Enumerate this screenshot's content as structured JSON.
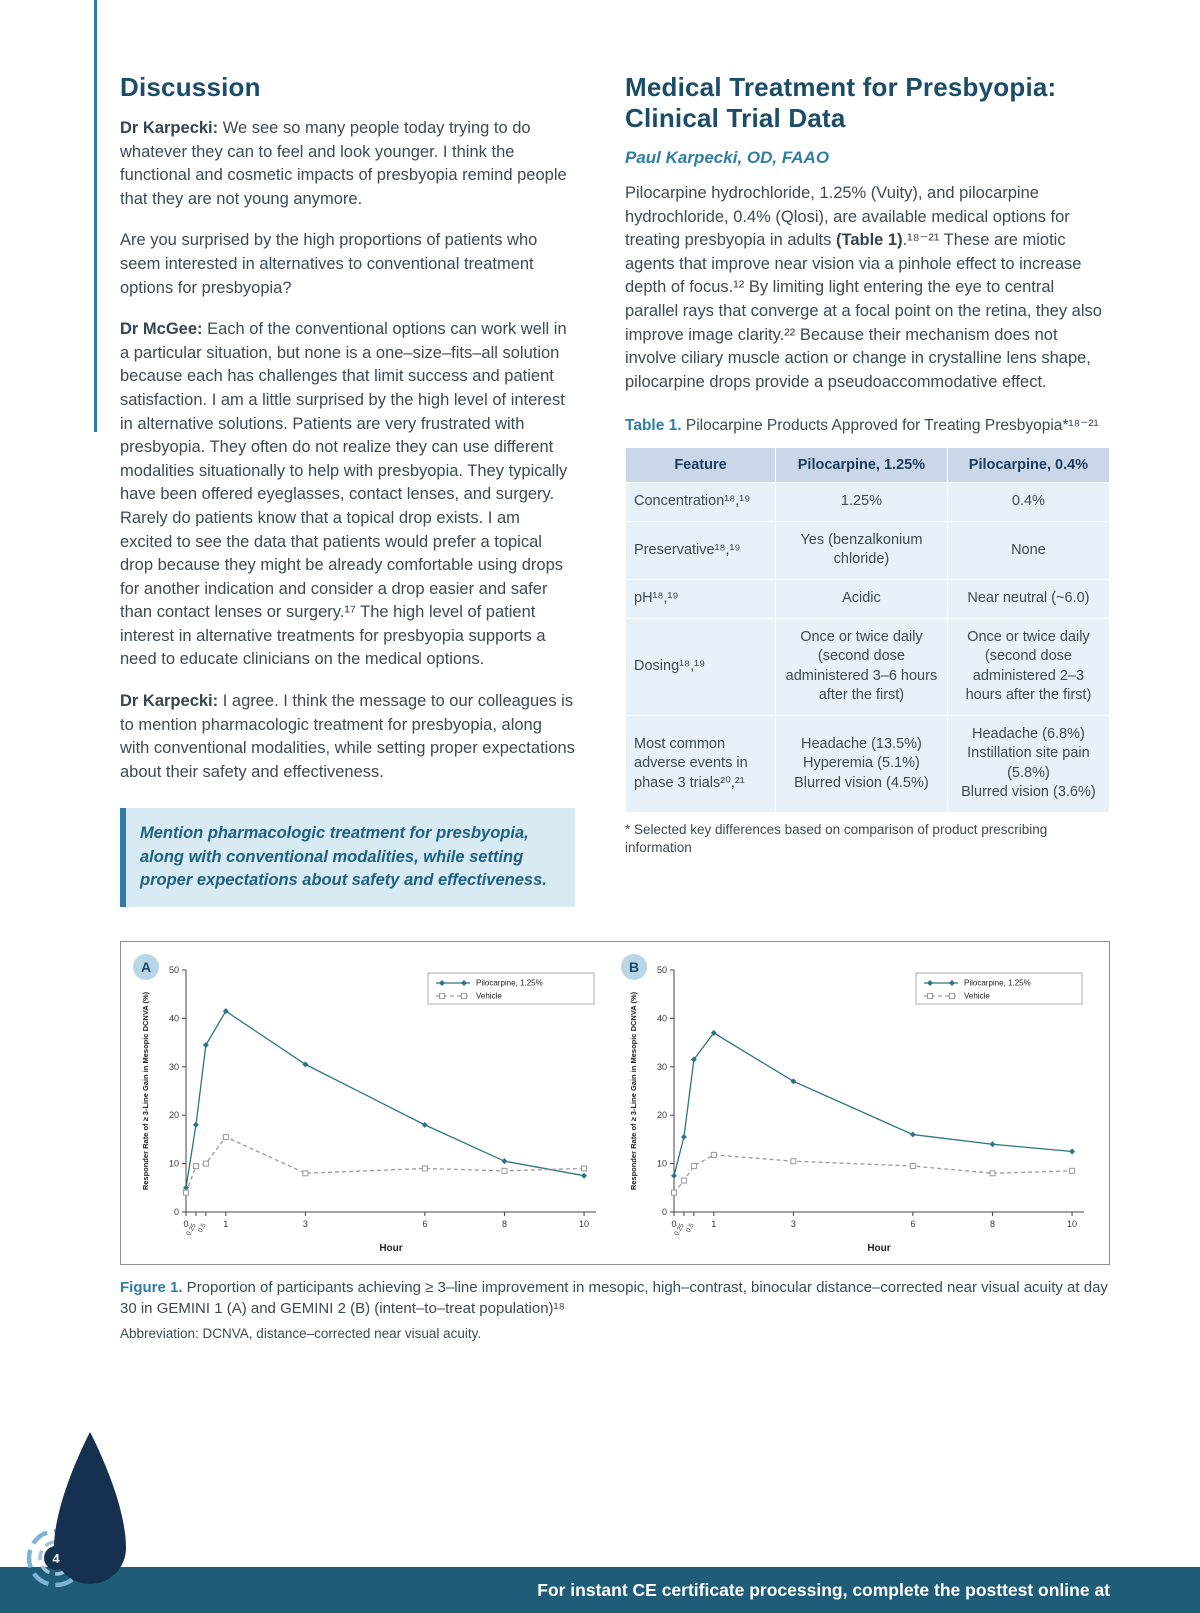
{
  "discussion": {
    "heading": "Discussion",
    "paragraphs": [
      {
        "segments": [
          {
            "text": "Dr Karpecki: ",
            "bold": true
          },
          {
            "text": "We see so many people today trying to do whatever they can to feel and look younger. I think the functional and cosmetic impacts of presbyopia remind people that they are not young anymore."
          }
        ]
      },
      {
        "segments": [
          {
            "text": "Are you surprised by the high proportions of patients who seem interested in alternatives to conventional treatment options for presbyopia?"
          }
        ]
      },
      {
        "segments": [
          {
            "text": "Dr McGee: ",
            "bold": true
          },
          {
            "text": "Each of the conventional options can work well in a particular situation, but none is a one–size–fits–all solution because each has challenges that limit success and patient satisfaction. I am a little surprised by the high level of interest in alternative solutions. Patients are very frustrated with presbyopia. They often do not realize they can use different modalities situationally to help with presbyopia. They typically have been offered eyeglasses, contact lenses, and surgery. Rarely do patients know that a topical drop exists. I am excited to see the data that patients would prefer a topical drop because they might be already comfortable using drops for another indication and consider a drop easier and safer than contact lenses or surgery.¹⁷ The high level of patient interest in alternative treatments for presbyopia supports a need to educate clinicians on the medical options."
          }
        ]
      },
      {
        "segments": [
          {
            "text": "Dr Karpecki: ",
            "bold": true
          },
          {
            "text": "I agree. I think the message to our colleagues is to mention pharmacologic treatment for presbyopia, along with conventional modalities, while setting proper expectations about their safety and effectiveness."
          }
        ]
      }
    ],
    "callout": "Mention pharmacologic treatment for presbyopia, along with conventional modalities, while setting proper expectations about safety and effectiveness."
  },
  "clinical": {
    "heading": "Medical Treatment for Presbyopia: Clinical Trial Data",
    "byline": "Paul Karpecki, OD, FAAO",
    "paragraphs": [
      {
        "segments": [
          {
            "text": "Pilocarpine hydrochloride, 1.25% (Vuity), and pilocarpine hydrochloride, 0.4% (Qlosi), are available medical options for treating presbyopia in adults "
          },
          {
            "text": "(Table 1)",
            "bold": true
          },
          {
            "text": ".¹⁸⁻²¹ These are miotic agents that improve near vision via a pinhole effect to increase depth of focus.¹² By limiting light entering the eye to central parallel rays that converge at a focal point on the retina, they also improve image clarity.²² Because their mechanism does not involve ciliary muscle action or change in crystalline lens shape, pilocarpine drops provide a pseudoaccommodative effect."
          }
        ]
      }
    ]
  },
  "table": {
    "label": "Table 1.",
    "title": " Pilocarpine Products Approved for Treating Presbyopia*¹⁸⁻²¹",
    "columns": [
      "Feature",
      "Pilocarpine, 1.25%",
      "Pilocarpine, 0.4%"
    ],
    "rows": [
      [
        "Concentration¹⁸,¹⁹",
        "1.25%",
        "0.4%"
      ],
      [
        "Preservative¹⁸,¹⁹",
        "Yes (benzalkonium chloride)",
        "None"
      ],
      [
        "pH¹⁸,¹⁹",
        "Acidic",
        "Near neutral (~6.0)"
      ],
      [
        "Dosing¹⁸,¹⁹",
        "Once or twice daily (second dose administered 3–6 hours after the first)",
        "Once or twice daily (second dose administered 2–3 hours after the first)"
      ],
      [
        "Most common adverse events in phase 3 trials²⁰,²¹",
        "Headache (13.5%)\nHyperemia (5.1%)\nBlurred vision (4.5%)",
        "Headache (6.8%)\nInstillation site pain (5.8%)\nBlurred vision (3.6%)"
      ]
    ],
    "footnote": "* Selected key differences based on comparison of product prescribing information"
  },
  "figure": {
    "panels": [
      {
        "label": "A"
      },
      {
        "label": "B"
      }
    ],
    "caption_label": "Figure 1.",
    "caption_text": " Proportion of participants achieving ≥ 3–line improvement in mesopic, high–contrast, binocular distance–corrected near visual acuity at day 30 in GEMINI 1 (A) and GEMINI 2 (B) (intent–to–treat population)¹⁸",
    "abbreviation": "Abbreviation: DCNVA, distance–corrected near visual acuity."
  },
  "chart_data": [
    {
      "type": "line",
      "panel": "A",
      "title": "GEMINI 1",
      "x": [
        0,
        0.25,
        0.5,
        1,
        3,
        6,
        8,
        10
      ],
      "xticks": [
        0,
        0.25,
        0.5,
        1,
        3,
        6,
        8,
        10
      ],
      "xlim": [
        0,
        10.3
      ],
      "ylim": [
        0,
        50
      ],
      "yticks": [
        0,
        10,
        20,
        30,
        40,
        50
      ],
      "xlabel": "Hour",
      "ylabel": "Responder Rate of ≥ 3-Line Gain in Mesopic DCNVA (%)",
      "grid": false,
      "legend_position": "top-right",
      "series": [
        {
          "name": "Pilocarpine, 1.25%",
          "values": [
            5,
            18,
            34.5,
            41.5,
            30.5,
            18,
            10.5,
            7.5
          ],
          "color": "#2e7485",
          "dash": "none",
          "marker": "diamond"
        },
        {
          "name": "Vehicle",
          "values": [
            4,
            9.5,
            10,
            15.5,
            8,
            9,
            8.5,
            9
          ],
          "color": "#9a9a9a",
          "dash": "4 3",
          "marker": "square"
        }
      ]
    },
    {
      "type": "line",
      "panel": "B",
      "title": "GEMINI 2",
      "x": [
        0,
        0.25,
        0.5,
        1,
        3,
        6,
        8,
        10
      ],
      "xticks": [
        0,
        0.25,
        0.5,
        1,
        3,
        6,
        8,
        10
      ],
      "xlim": [
        0,
        10.3
      ],
      "ylim": [
        0,
        50
      ],
      "yticks": [
        0,
        10,
        20,
        30,
        40,
        50
      ],
      "xlabel": "Hour",
      "ylabel": "Responder Rate of ≥ 3-Line Gain in Mesopic DCNVA (%)",
      "grid": false,
      "legend_position": "top-right",
      "series": [
        {
          "name": "Pilocarpine, 1.25%",
          "values": [
            7.5,
            15.5,
            31.5,
            37,
            27,
            16,
            14,
            12.5
          ],
          "color": "#2e7485",
          "dash": "none",
          "marker": "diamond"
        },
        {
          "name": "Vehicle",
          "values": [
            4,
            6.5,
            9.5,
            11.8,
            10.5,
            9.5,
            8,
            8.5
          ],
          "color": "#9a9a9a",
          "dash": "4 3",
          "marker": "square"
        }
      ]
    }
  ],
  "footer": {
    "text": "For instant CE certificate processing, complete the posttest online at",
    "page_number": "4"
  },
  "colors": {
    "accent_teal": "#2f7da6",
    "heading_navy": "#1c4d68",
    "byline_teal": "#2f7fa3",
    "callout_bg": "#d8eaf4",
    "table_header_bg": "#c9d7e8",
    "table_cell_bg": "#e9f1f8",
    "footer_bar": "#1e5c77",
    "series_pilocarpine": "#2e7485",
    "series_vehicle": "#9a9a9a"
  }
}
